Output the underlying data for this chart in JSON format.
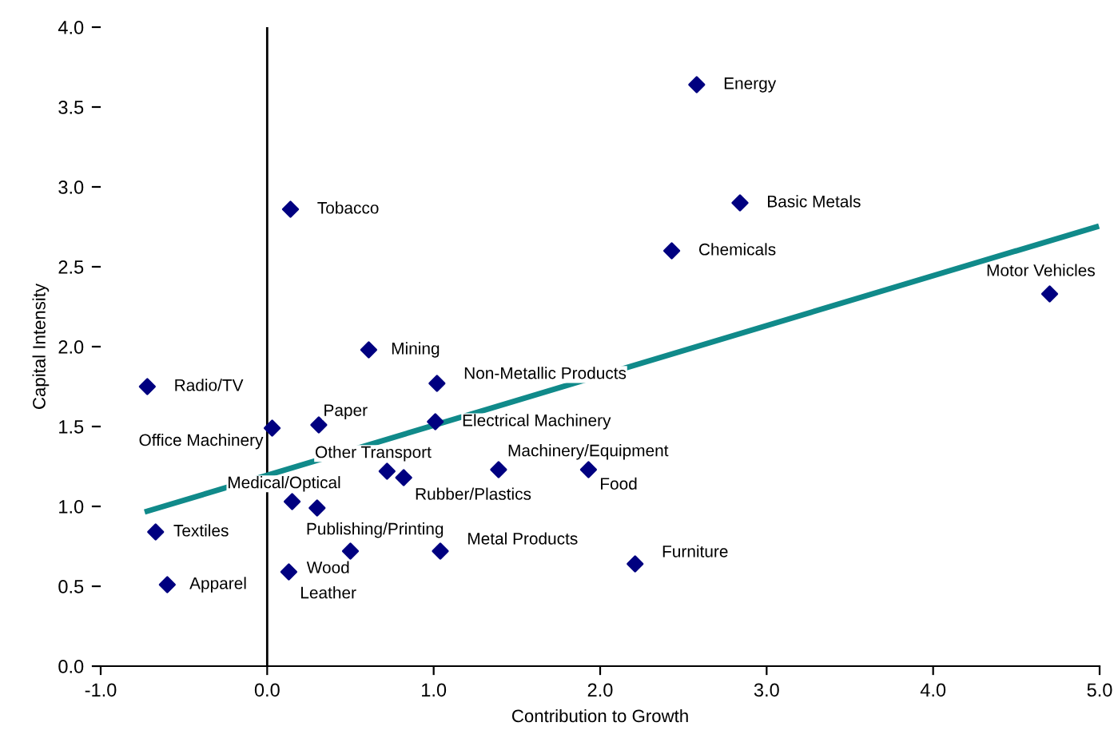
{
  "chart_data": {
    "type": "scatter",
    "xlabel": "Contribution to Growth",
    "ylabel": "Capital Intensity",
    "xlim": [
      -1,
      5
    ],
    "ylim": [
      0,
      4
    ],
    "xticks": [
      {
        "value": -1,
        "label": "-1.0"
      },
      {
        "value": 0,
        "label": "0.0"
      },
      {
        "value": 1,
        "label": "1.0"
      },
      {
        "value": 2,
        "label": "2.0"
      },
      {
        "value": 3,
        "label": "3.0"
      },
      {
        "value": 4,
        "label": "4.0"
      },
      {
        "value": 5,
        "label": "5.0"
      }
    ],
    "yticks": [
      {
        "value": 0,
        "label": "0.0"
      },
      {
        "value": 0.5,
        "label": "0.5"
      },
      {
        "value": 1,
        "label": "1.0"
      },
      {
        "value": 1.5,
        "label": "1.5"
      },
      {
        "value": 2,
        "label": "2.0"
      },
      {
        "value": 2.5,
        "label": "2.5"
      },
      {
        "value": 3,
        "label": "3.0"
      },
      {
        "value": 3.5,
        "label": "3.5"
      },
      {
        "value": 4,
        "label": "4.0"
      }
    ],
    "marker": "diamond",
    "grid": false,
    "legend": false,
    "ref_lines": [
      {
        "axis": "x",
        "value": 0,
        "color": "#000000"
      }
    ],
    "series": [
      {
        "color": "#000080",
        "x": [
          2.58,
          2.84,
          2.43,
          4.7,
          0.14,
          0.61,
          1.02,
          -0.72,
          1.01,
          0.31,
          0.03,
          0.72,
          0.82,
          1.39,
          1.93,
          0.15,
          0.3,
          -0.67,
          0.5,
          1.04,
          2.21,
          0.13,
          -0.6
        ],
        "values": [
          3.64,
          2.9,
          2.6,
          2.33,
          2.86,
          1.98,
          1.77,
          1.75,
          1.53,
          1.51,
          1.49,
          1.22,
          1.18,
          1.23,
          1.23,
          1.03,
          0.99,
          0.84,
          0.72,
          0.72,
          0.64,
          0.59,
          0.51
        ]
      },
      {
        "type": "line",
        "color": "#108a8a",
        "marker": "none",
        "x": [
          -0.72,
          4.98
        ],
        "values": [
          0.97,
          2.75
        ]
      }
    ],
    "annotations": [
      {
        "text": "Energy",
        "x": 2.58,
        "y": 3.64
      },
      {
        "text": "Basic Metals",
        "x": 2.84,
        "y": 2.9
      },
      {
        "text": "Chemicals",
        "x": 2.43,
        "y": 2.6
      },
      {
        "text": "Motor Vehicles",
        "x": 4.7,
        "y": 2.33
      },
      {
        "text": "Tobacco",
        "x": 0.14,
        "y": 2.86
      },
      {
        "text": "Mining",
        "x": 0.61,
        "y": 1.98
      },
      {
        "text": "Non-Metallic Products",
        "x": 1.02,
        "y": 1.77
      },
      {
        "text": "Radio/TV",
        "x": -0.72,
        "y": 1.75
      },
      {
        "text": "Electrical Machinery",
        "x": 1.01,
        "y": 1.53
      },
      {
        "text": "Paper",
        "x": 0.31,
        "y": 1.51
      },
      {
        "text": "Office Machinery",
        "x": 0.03,
        "y": 1.49
      },
      {
        "text": "Other Transport",
        "x": 0.72,
        "y": 1.22
      },
      {
        "text": "Rubber/Plastics",
        "x": 0.82,
        "y": 1.18
      },
      {
        "text": "Machinery/Equipment",
        "x": 1.39,
        "y": 1.23
      },
      {
        "text": "Food",
        "x": 1.93,
        "y": 1.23
      },
      {
        "text": "Medical/Optical",
        "x": 0.15,
        "y": 1.03
      },
      {
        "text": "Publishing/Printing",
        "x": 0.3,
        "y": 0.99
      },
      {
        "text": "Textiles",
        "x": -0.67,
        "y": 0.84
      },
      {
        "text": "Wood",
        "x": 0.5,
        "y": 0.72
      },
      {
        "text": "Metal Products",
        "x": 1.04,
        "y": 0.72
      },
      {
        "text": "Furniture",
        "x": 2.21,
        "y": 0.64
      },
      {
        "text": "Leather",
        "x": 0.13,
        "y": 0.59
      },
      {
        "text": "Apparel",
        "x": -0.6,
        "y": 0.51
      }
    ]
  }
}
